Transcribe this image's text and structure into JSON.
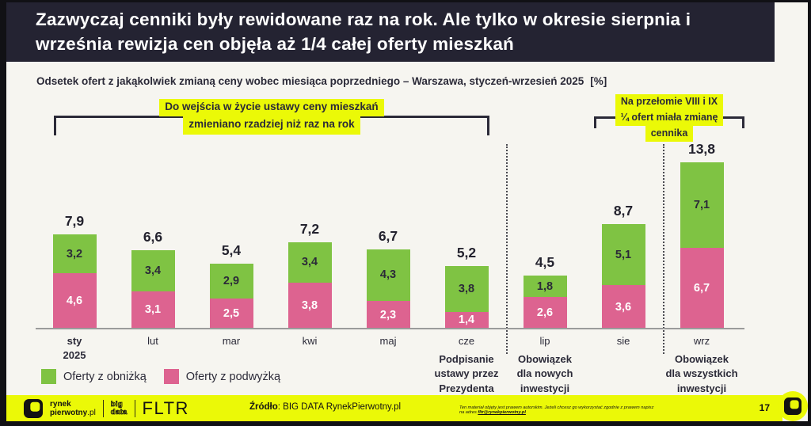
{
  "header": {
    "title": "Zazwyczaj cenniki były rewidowane raz na rok. Ale tylko w okresie sierpnia i września rewizja cen objęła aż 1/4 całej oferty mieszkań"
  },
  "subtitle": {
    "text": "Odsetek ofert z jakąkolwiek zmianą ceny wobec miesiąca poprzedniego – Warszawa, styczeń-wrzesień 2025",
    "unit": "[%]"
  },
  "annotations": {
    "left": {
      "lines": [
        "Do wejścia w życie ustawy ceny mieszkań",
        "zmieniano rzadziej niż raz na rok"
      ]
    },
    "right": {
      "lines": [
        "Na przełomie VIII i IX",
        "¼ ofert miała zmianę",
        "cennika"
      ]
    }
  },
  "chart_data": {
    "type": "bar",
    "stacked": true,
    "title": "Odsetek ofert z jakąkolwiek zmianą ceny wobec miesiąca poprzedniego – Warszawa, styczeń-wrzesień 2025 [%]",
    "categories": [
      "sty",
      "lut",
      "mar",
      "kwi",
      "maj",
      "cze",
      "lip",
      "sie",
      "wrz"
    ],
    "category_sublabels": [
      "2025",
      "",
      "",
      "",
      "",
      "",
      "",
      "",
      ""
    ],
    "series": [
      {
        "name": "Oferty z podwyżką",
        "stack_position": "bottom",
        "color": "#DD6390",
        "label_color": "#FFFFFF",
        "values": [
          4.6,
          3.1,
          2.5,
          3.8,
          2.3,
          1.4,
          2.6,
          3.6,
          6.7
        ]
      },
      {
        "name": "Oferty z obniżką",
        "stack_position": "top",
        "color": "#7FC343",
        "label_color": "#2B2A38",
        "values": [
          3.2,
          3.4,
          2.9,
          3.4,
          4.3,
          3.8,
          1.8,
          5.1,
          7.1
        ]
      }
    ],
    "totals": [
      7.9,
      6.6,
      5.4,
      7.2,
      6.7,
      5.2,
      4.5,
      8.7,
      13.8
    ],
    "ylim": [
      0,
      14
    ],
    "grid": false,
    "legend_position": "bottom-left",
    "decimal_separator": ","
  },
  "legend": [
    {
      "label": "Oferty z obniżką",
      "color": "#7FC343"
    },
    {
      "label": "Oferty z podwyżką",
      "color": "#DD6390"
    }
  ],
  "milestones": [
    {
      "category": "cze",
      "lines": [
        "Podpisanie",
        "ustawy przez",
        "Prezydenta"
      ]
    },
    {
      "category": "lip",
      "lines": [
        "Obowiązek",
        "dla nowych",
        "inwestycji"
      ]
    },
    {
      "category": "wrz",
      "lines": [
        "Obowiązek",
        "dla wszystkich",
        "inwestycji"
      ]
    }
  ],
  "footer": {
    "brand": {
      "name_line1": "rynek",
      "name_line2_bold": "pierwotny",
      "name_line2_light": ".pl",
      "bigdata_line1": "big",
      "bigdata_line2": "data",
      "fltr": "FLTR"
    },
    "source_label": "Źródło",
    "source_text": ": BIG DATA RynekPierwotny.pl",
    "copyright_text": "Ten materiał objęty jest prawem autorskim. Jeżeli chcesz go wykorzystać zgodnie z prawem napisz na adres ",
    "copyright_email": "fltr@rynekpierwotny.pl",
    "page_number": "17"
  },
  "colors": {
    "accent_yellow": "#EBF907",
    "green": "#7FC343",
    "pink": "#DD6390",
    "header_bg": "#242332",
    "page_bg": "#F6F5F0"
  }
}
